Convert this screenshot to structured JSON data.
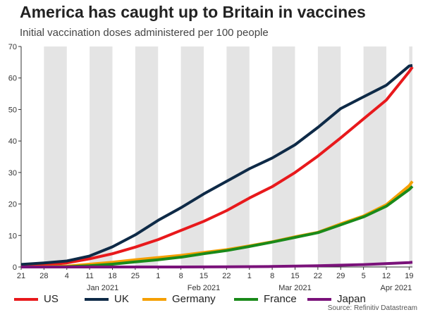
{
  "header": {
    "title": "America has caught up to Britain in vaccines",
    "subtitle": "Initial vaccination doses administered per 100 people"
  },
  "source": "Source: Refinitiv Datastream",
  "chart_data": {
    "type": "line",
    "title": "America has caught up to Britain in vaccines",
    "subtitle": "Initial vaccination doses administered per 100 people",
    "xlabel": "",
    "ylabel": "",
    "ylim": [
      0,
      70
    ],
    "yticks": [
      0,
      10,
      20,
      30,
      40,
      50,
      60,
      70
    ],
    "xlim": [
      "2020-12-21",
      "2021-04-20"
    ],
    "xticks": [
      {
        "date": "2020-12-21",
        "label": "21"
      },
      {
        "date": "2020-12-28",
        "label": "28"
      },
      {
        "date": "2021-01-04",
        "label": "4"
      },
      {
        "date": "2021-01-11",
        "label": "11"
      },
      {
        "date": "2021-01-18",
        "label": "18"
      },
      {
        "date": "2021-01-25",
        "label": "25"
      },
      {
        "date": "2021-02-01",
        "label": "1"
      },
      {
        "date": "2021-02-08",
        "label": "8"
      },
      {
        "date": "2021-02-15",
        "label": "15"
      },
      {
        "date": "2021-02-22",
        "label": "22"
      },
      {
        "date": "2021-03-01",
        "label": "1"
      },
      {
        "date": "2021-03-08",
        "label": "8"
      },
      {
        "date": "2021-03-15",
        "label": "15"
      },
      {
        "date": "2021-03-22",
        "label": "22"
      },
      {
        "date": "2021-03-29",
        "label": "29"
      },
      {
        "date": "2021-04-05",
        "label": "5"
      },
      {
        "date": "2021-04-12",
        "label": "12"
      },
      {
        "date": "2021-04-19",
        "label": "19"
      }
    ],
    "month_labels": [
      {
        "date": "2021-01-15",
        "label": "Jan 2021"
      },
      {
        "date": "2021-02-15",
        "label": "Feb 2021"
      },
      {
        "date": "2021-03-15",
        "label": "Mar 2021"
      },
      {
        "date": "2021-04-15",
        "label": "Apr 2021"
      }
    ],
    "shaded_weeks": [
      "2020-12-28",
      "2021-01-11",
      "2021-01-25",
      "2021-02-08",
      "2021-02-22",
      "2021-03-08",
      "2021-03-22",
      "2021-04-05",
      "2021-04-19"
    ],
    "grid": false,
    "legend_position": "bottom",
    "series": [
      {
        "name": "US",
        "color": "#e8191c",
        "points": [
          [
            "2020-12-21",
            0.2
          ],
          [
            "2020-12-28",
            0.6
          ],
          [
            "2021-01-04",
            1.3
          ],
          [
            "2021-01-11",
            2.6
          ],
          [
            "2021-01-18",
            4.2
          ],
          [
            "2021-01-25",
            6.3
          ],
          [
            "2021-02-01",
            8.7
          ],
          [
            "2021-02-08",
            11.6
          ],
          [
            "2021-02-15",
            14.5
          ],
          [
            "2021-02-22",
            17.9
          ],
          [
            "2021-03-01",
            21.9
          ],
          [
            "2021-03-08",
            25.5
          ],
          [
            "2021-03-15",
            30.0
          ],
          [
            "2021-03-22",
            35.2
          ],
          [
            "2021-03-29",
            41.0
          ],
          [
            "2021-04-05",
            47.0
          ],
          [
            "2021-04-12",
            53.0
          ],
          [
            "2021-04-19",
            62.0
          ],
          [
            "2021-04-20",
            63.5
          ]
        ]
      },
      {
        "name": "UK",
        "color": "#0e2a47",
        "points": [
          [
            "2020-12-21",
            0.8
          ],
          [
            "2020-12-28",
            1.3
          ],
          [
            "2021-01-04",
            1.9
          ],
          [
            "2021-01-11",
            3.5
          ],
          [
            "2021-01-18",
            6.4
          ],
          [
            "2021-01-25",
            10.2
          ],
          [
            "2021-02-01",
            14.8
          ],
          [
            "2021-02-08",
            18.8
          ],
          [
            "2021-02-15",
            23.2
          ],
          [
            "2021-02-22",
            27.2
          ],
          [
            "2021-03-01",
            31.2
          ],
          [
            "2021-03-08",
            34.6
          ],
          [
            "2021-03-15",
            38.8
          ],
          [
            "2021-03-22",
            44.3
          ],
          [
            "2021-03-29",
            50.3
          ],
          [
            "2021-04-05",
            54.0
          ],
          [
            "2021-04-12",
            57.7
          ],
          [
            "2021-04-19",
            63.8
          ],
          [
            "2021-04-20",
            64.0
          ]
        ]
      },
      {
        "name": "Germany",
        "color": "#f59f00",
        "points": [
          [
            "2020-12-21",
            0.0
          ],
          [
            "2020-12-28",
            0.1
          ],
          [
            "2021-01-04",
            0.3
          ],
          [
            "2021-01-11",
            0.9
          ],
          [
            "2021-01-18",
            1.5
          ],
          [
            "2021-01-25",
            2.3
          ],
          [
            "2021-02-01",
            3.0
          ],
          [
            "2021-02-08",
            3.7
          ],
          [
            "2021-02-15",
            4.6
          ],
          [
            "2021-02-22",
            5.5
          ],
          [
            "2021-03-01",
            6.7
          ],
          [
            "2021-03-08",
            8.0
          ],
          [
            "2021-03-15",
            9.6
          ],
          [
            "2021-03-22",
            11.0
          ],
          [
            "2021-03-29",
            13.7
          ],
          [
            "2021-04-05",
            16.2
          ],
          [
            "2021-04-12",
            19.8
          ],
          [
            "2021-04-19",
            25.8
          ],
          [
            "2021-04-20",
            27.2
          ]
        ]
      },
      {
        "name": "France",
        "color": "#1a8a1a",
        "points": [
          [
            "2020-12-21",
            0.0
          ],
          [
            "2020-12-28",
            0.0
          ],
          [
            "2021-01-04",
            0.1
          ],
          [
            "2021-01-11",
            0.4
          ],
          [
            "2021-01-18",
            0.9
          ],
          [
            "2021-01-25",
            1.6
          ],
          [
            "2021-02-01",
            2.3
          ],
          [
            "2021-02-08",
            3.1
          ],
          [
            "2021-02-15",
            4.2
          ],
          [
            "2021-02-22",
            5.2
          ],
          [
            "2021-03-01",
            6.5
          ],
          [
            "2021-03-08",
            7.9
          ],
          [
            "2021-03-15",
            9.4
          ],
          [
            "2021-03-22",
            10.9
          ],
          [
            "2021-03-29",
            13.4
          ],
          [
            "2021-04-05",
            15.9
          ],
          [
            "2021-04-12",
            19.3
          ],
          [
            "2021-04-19",
            24.6
          ],
          [
            "2021-04-20",
            25.6
          ]
        ]
      },
      {
        "name": "Japan",
        "color": "#7a127a",
        "points": [
          [
            "2020-12-21",
            0.0
          ],
          [
            "2021-02-08",
            0.0
          ],
          [
            "2021-02-22",
            0.05
          ],
          [
            "2021-03-08",
            0.15
          ],
          [
            "2021-03-22",
            0.4
          ],
          [
            "2021-04-05",
            0.75
          ],
          [
            "2021-04-19",
            1.4
          ],
          [
            "2021-04-20",
            1.5
          ]
        ]
      }
    ]
  }
}
